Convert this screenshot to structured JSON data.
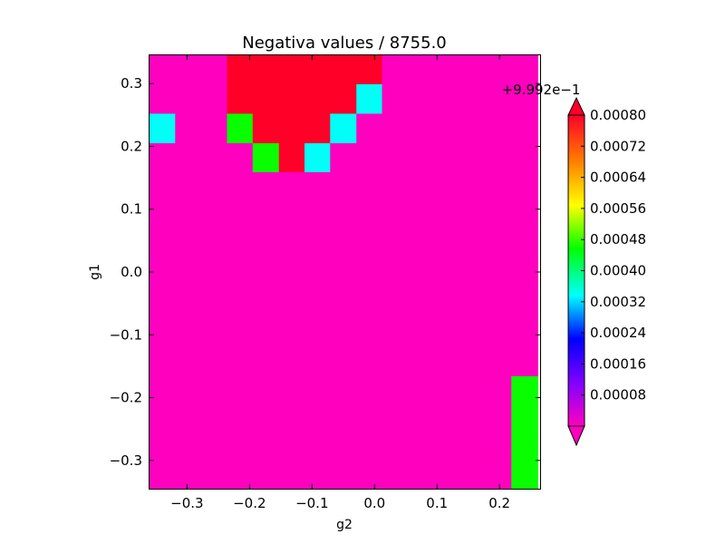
{
  "chart_data": {
    "type": "heatmap",
    "title": "Negativa values / 8755.0",
    "xlabel": "g2",
    "ylabel": "g1",
    "xlim": [
      -0.36,
      0.265
    ],
    "ylim": [
      -0.345,
      0.345
    ],
    "x_ticks": [
      -0.3,
      -0.2,
      -0.1,
      0.0,
      0.1,
      0.2
    ],
    "x_tick_labels": [
      "−0.3",
      "−0.2",
      "−0.1",
      "0.0",
      "0.1",
      "0.2"
    ],
    "y_ticks": [
      0.3,
      0.2,
      0.1,
      0.0,
      -0.1,
      -0.2,
      -0.3
    ],
    "y_tick_labels": [
      "0.3",
      "0.2",
      "0.1",
      "0.0",
      "−0.1",
      "−0.2",
      "−0.3"
    ],
    "x_edges": [
      -0.36,
      -0.319,
      -0.278,
      -0.236,
      -0.195,
      -0.153,
      -0.112,
      -0.071,
      -0.029,
      0.012,
      0.054,
      0.095,
      0.136,
      0.178,
      0.219,
      0.261
    ],
    "y_edges": [
      0.345,
      0.299,
      0.252,
      0.205,
      0.159,
      0.113,
      0.066,
      0.019,
      -0.027,
      -0.073,
      -0.12,
      -0.166,
      -0.213,
      -0.259,
      -0.305,
      -0.352
    ],
    "values_offset": 0.9992,
    "values_note": "cell value = offset + listed value",
    "rows": [
      [
        0.0,
        0.0,
        0.0,
        0.0008,
        0.0008,
        0.0008,
        0.0008,
        0.0008,
        0.0008,
        0.0,
        0.0,
        0.0,
        0.0,
        0.0,
        0.0
      ],
      [
        0.0,
        0.0,
        0.0,
        0.0008,
        0.0008,
        0.0008,
        0.0008,
        0.0008,
        0.00034,
        0.0,
        0.0,
        0.0,
        0.0,
        0.0,
        0.0
      ],
      [
        0.00034,
        0.0,
        0.0,
        0.00046,
        0.0008,
        0.0008,
        0.0008,
        0.00034,
        0.0,
        0.0,
        0.0,
        0.0,
        0.0,
        0.0,
        0.0
      ],
      [
        0.0,
        0.0,
        0.0,
        0.0,
        0.00046,
        0.0008,
        0.00034,
        0.0,
        0.0,
        0.0,
        0.0,
        0.0,
        0.0,
        0.0,
        0.0
      ],
      [
        0.0,
        0.0,
        0.0,
        0.0,
        0.0,
        0.0,
        0.0,
        0.0,
        0.0,
        0.0,
        0.0,
        0.0,
        0.0,
        0.0,
        0.0
      ],
      [
        0.0,
        0.0,
        0.0,
        0.0,
        0.0,
        0.0,
        0.0,
        0.0,
        0.0,
        0.0,
        0.0,
        0.0,
        0.0,
        0.0,
        0.0
      ],
      [
        0.0,
        0.0,
        0.0,
        0.0,
        0.0,
        0.0,
        0.0,
        0.0,
        0.0,
        0.0,
        0.0,
        0.0,
        0.0,
        0.0,
        0.0
      ],
      [
        0.0,
        0.0,
        0.0,
        0.0,
        0.0,
        0.0,
        0.0,
        0.0,
        0.0,
        0.0,
        0.0,
        0.0,
        0.0,
        0.0,
        0.0
      ],
      [
        0.0,
        0.0,
        0.0,
        0.0,
        0.0,
        0.0,
        0.0,
        0.0,
        0.0,
        0.0,
        0.0,
        0.0,
        0.0,
        0.0,
        0.0
      ],
      [
        0.0,
        0.0,
        0.0,
        0.0,
        0.0,
        0.0,
        0.0,
        0.0,
        0.0,
        0.0,
        0.0,
        0.0,
        0.0,
        0.0,
        0.0
      ],
      [
        0.0,
        0.0,
        0.0,
        0.0,
        0.0,
        0.0,
        0.0,
        0.0,
        0.0,
        0.0,
        0.0,
        0.0,
        0.0,
        0.0,
        0.0
      ],
      [
        0.0,
        0.0,
        0.0,
        0.0,
        0.0,
        0.0,
        0.0,
        0.0,
        0.0,
        0.0,
        0.0,
        0.0,
        0.0,
        0.0,
        0.00046
      ],
      [
        0.0,
        0.0,
        0.0,
        0.0,
        0.0,
        0.0,
        0.0,
        0.0,
        0.0,
        0.0,
        0.0,
        0.0,
        0.0,
        0.0,
        0.00046
      ],
      [
        0.0,
        0.0,
        0.0,
        0.0,
        0.0,
        0.0,
        0.0,
        0.0,
        0.0,
        0.0,
        0.0,
        0.0,
        0.0,
        0.0,
        0.00046
      ],
      [
        0.0,
        0.0,
        0.0,
        0.0,
        0.0,
        0.0,
        0.0,
        0.0,
        0.0,
        0.0,
        0.0,
        0.0,
        0.0,
        0.0,
        0.00046
      ]
    ],
    "colorbar": {
      "offset_label": "+9.992e−1",
      "range": [
        0.0,
        0.0008
      ],
      "ticks": [
        8e-05,
        0.00016,
        0.00024,
        0.00032,
        0.0004,
        0.00048,
        0.00056,
        0.00064,
        0.00072,
        0.0008
      ],
      "tick_labels": [
        "0.00008",
        "0.00016",
        "0.00024",
        "0.00032",
        "0.00040",
        "0.00048",
        "0.00056",
        "0.00064",
        "0.00072",
        "0.00080"
      ],
      "extend": "both",
      "colormap": "gist_rainbow_r"
    },
    "grid": false
  }
}
